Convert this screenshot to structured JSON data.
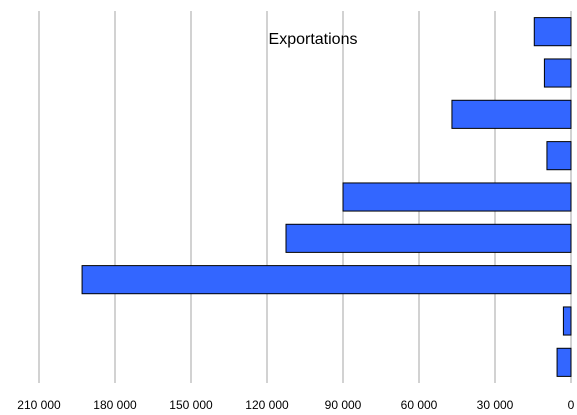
{
  "chart_data": {
    "type": "bar",
    "orientation": "horizontal",
    "x_axis_direction": "reversed",
    "title": "Exportations",
    "xlabel": "",
    "ylabel": "",
    "xlim": [
      0,
      210000
    ],
    "x_ticks": [
      210000,
      180000,
      150000,
      120000,
      90000,
      60000,
      30000,
      0
    ],
    "x_tick_labels": [
      "210 000",
      "180 000",
      "150 000",
      "120 000",
      "90 000",
      "60 000",
      "30 000",
      "0"
    ],
    "grid": "vertical",
    "legend": "none",
    "bar_color": "#3366ff",
    "bar_edge_color": "#000000",
    "gridline_color": "#a6a6a6",
    "categories": [
      "",
      "",
      "",
      "",
      "",
      "",
      "",
      "",
      ""
    ],
    "values": [
      14500,
      10500,
      47000,
      9500,
      90000,
      112500,
      193000,
      3000,
      5500
    ]
  }
}
